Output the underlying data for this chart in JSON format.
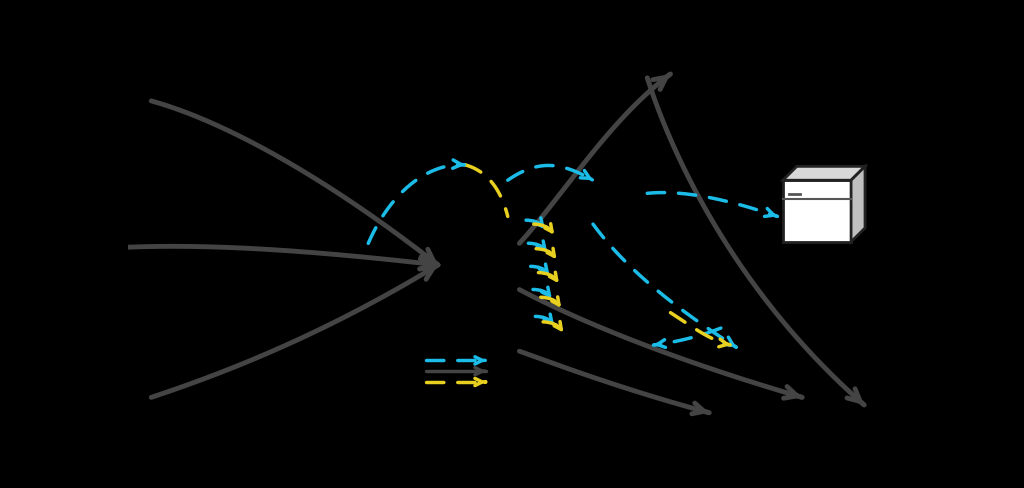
{
  "bg_color": "#000000",
  "gray_color": "#444444",
  "dark_gray": "#333333",
  "cyan_color": "#1BBDE8",
  "yellow_color": "#E8D020",
  "white_color": "#FFFFFF",
  "fig_width": 10.24,
  "fig_height": 4.88
}
